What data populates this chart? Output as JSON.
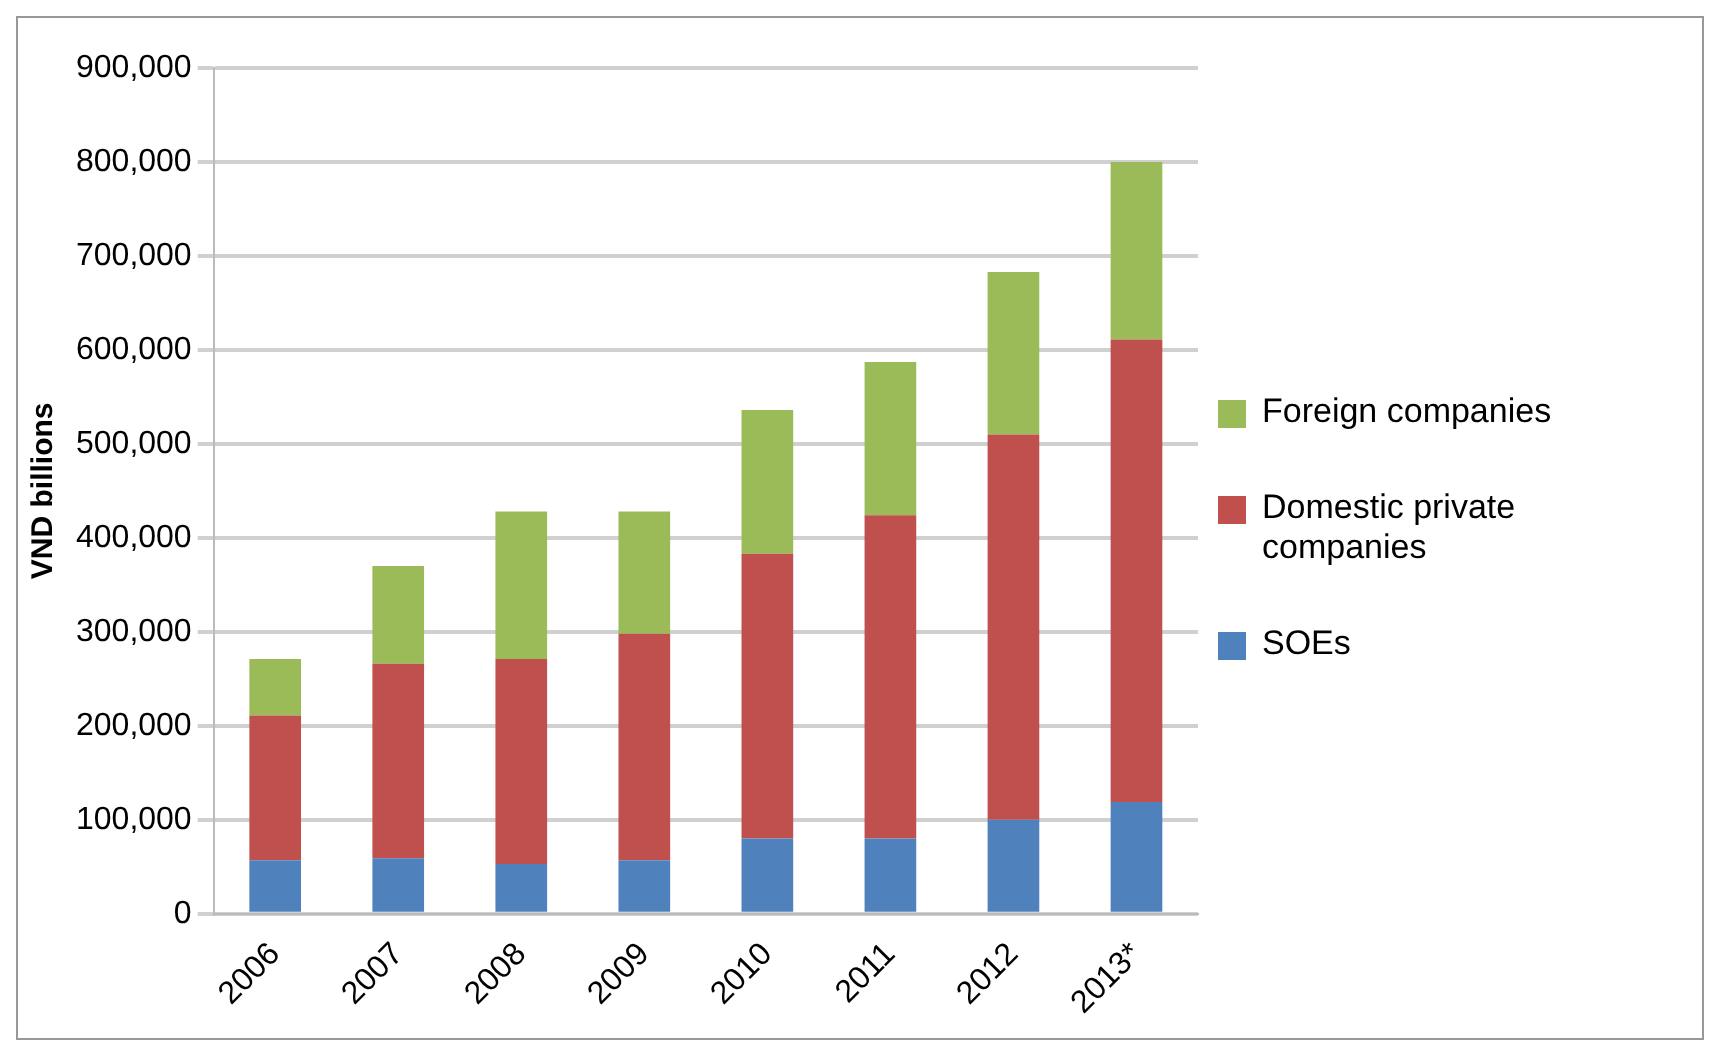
{
  "chart_data": {
    "type": "bar",
    "stacked": true,
    "ylabel": "VND billions",
    "categories": [
      "2006",
      "2007",
      "2008",
      "2009",
      "2010",
      "2011",
      "2012",
      "2013*"
    ],
    "series": [
      {
        "name": "SOEs",
        "color": "#4f81bd",
        "values": [
          57000,
          59000,
          53000,
          57000,
          80000,
          80000,
          100000,
          119000
        ]
      },
      {
        "name": "Domestic private companies",
        "color": "#c0504d",
        "values": [
          154000,
          207000,
          218000,
          241000,
          303000,
          344000,
          410000,
          492000
        ]
      },
      {
        "name": "Foreign companies",
        "color": "#9bbb59",
        "values": [
          60000,
          104000,
          157000,
          130000,
          153000,
          163000,
          173000,
          189000
        ]
      }
    ],
    "ylim": [
      0,
      900000
    ],
    "yticks": [
      {
        "value": 0,
        "label": "0"
      },
      {
        "value": 100000,
        "label": "100,000"
      },
      {
        "value": 200000,
        "label": "200,000"
      },
      {
        "value": 300000,
        "label": "300,000"
      },
      {
        "value": 400000,
        "label": "400,000"
      },
      {
        "value": 500000,
        "label": "500,000"
      },
      {
        "value": 600000,
        "label": "600,000"
      },
      {
        "value": 700000,
        "label": "700,000"
      },
      {
        "value": 800000,
        "label": "800,000"
      },
      {
        "value": 900000,
        "label": "900,000"
      }
    ],
    "grid": "y",
    "legend": "right"
  }
}
